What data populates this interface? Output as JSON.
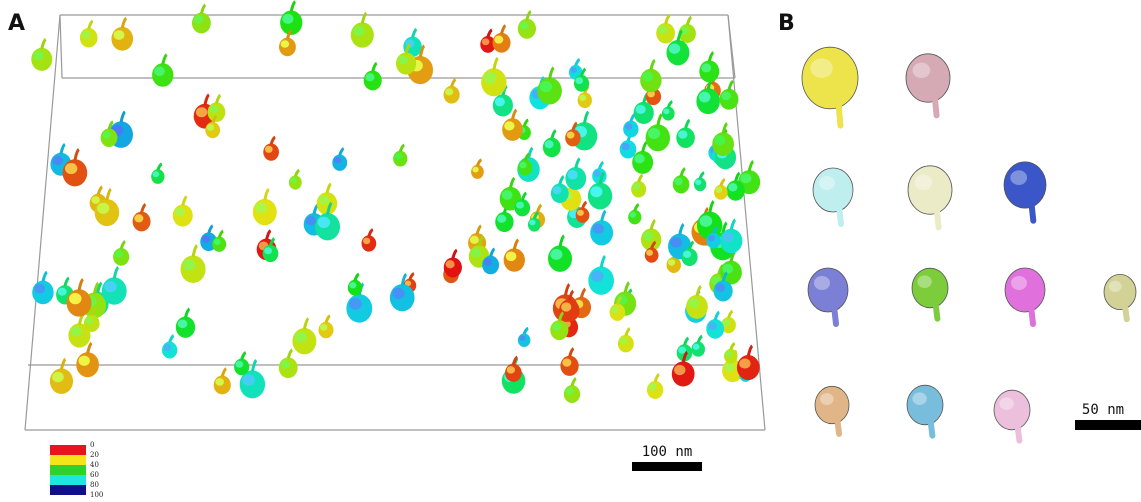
{
  "panels": [
    {
      "label": "A",
      "scale_bar": "100 nm"
    },
    {
      "label": "B",
      "scale_bar": "50 nm"
    }
  ],
  "colorbar": {
    "labels": [
      0,
      20,
      40,
      60,
      80,
      100
    ],
    "colors": [
      "#e8141b",
      "#f5e41a",
      "#2fd22b",
      "#1ee6e0",
      "#10108a"
    ]
  }
}
